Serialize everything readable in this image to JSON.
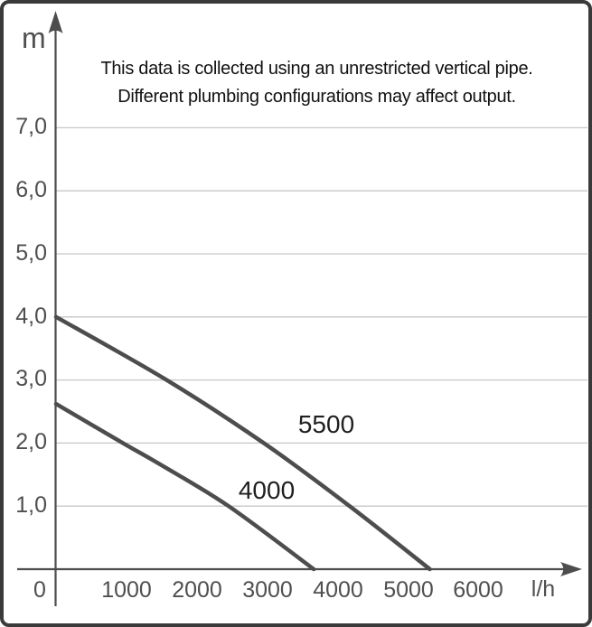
{
  "note": {
    "line1": "This data is collected using an unrestricted vertical pipe.",
    "line2": "Different plumbing configurations may affect output."
  },
  "chart_data": {
    "type": "line",
    "title": "",
    "xlabel": "l/h",
    "ylabel": "m",
    "xlim": [
      0,
      6800
    ],
    "ylim": [
      0,
      7.9
    ],
    "grid": "horizontal gridlines at 1.0 m intervals from 1.0 to 7.0",
    "legend_position": "inline labels next to curves",
    "x_ticks": [
      "0",
      "1000",
      "2000",
      "3000",
      "4000",
      "5000",
      "6000"
    ],
    "y_ticks": [
      "7,0",
      "6,0",
      "5,0",
      "4,0",
      "3,0",
      "2,0",
      "1,0"
    ],
    "series": [
      {
        "name": "5500",
        "points_lh_m": [
          [
            0,
            4.0
          ],
          [
            1570,
            3.0
          ],
          [
            2950,
            2.0
          ],
          [
            4170,
            1.0
          ],
          [
            5310,
            0
          ]
        ]
      },
      {
        "name": "4000",
        "points_lh_m": [
          [
            0,
            2.62
          ],
          [
            950,
            2.0
          ],
          [
            1480,
            1.66
          ],
          [
            2450,
            1.0
          ],
          [
            3660,
            0
          ]
        ]
      }
    ],
    "colors": {
      "curve": "#4d4d4d",
      "axis": "#4d4d4d",
      "gridline": "#c7c7c7",
      "tick_label": "#4f4f4f",
      "series_label": "#1f1f1f",
      "note_text": "#111111",
      "border": "#3a3a3a"
    }
  }
}
